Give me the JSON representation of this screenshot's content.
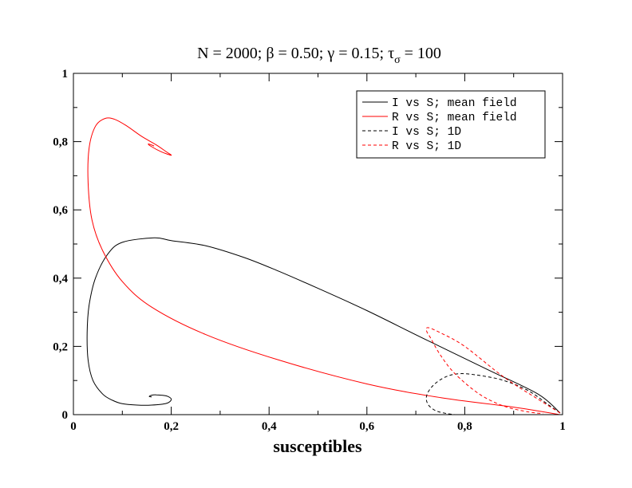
{
  "chart_data": {
    "type": "line",
    "title": {
      "prefix": "N = 2000;  ",
      "beta_symbol": "β",
      "beta_value": " = 0.50; ",
      "gamma_symbol": "γ",
      "gamma_value": " = 0.15; ",
      "tau_symbol": "τ",
      "tau_subscript": "σ",
      "tau_value": " = 100"
    },
    "xlabel": "susceptibles",
    "ylabel": "",
    "xlim": [
      0,
      1
    ],
    "ylim": [
      0,
      1
    ],
    "x_ticks": [
      0,
      0.2,
      0.4,
      0.6,
      0.8,
      1
    ],
    "x_tick_labels": [
      "0",
      "0,2",
      "0,4",
      "0,6",
      "0,8",
      "1"
    ],
    "y_ticks": [
      0,
      0.2,
      0.4,
      0.6,
      0.8,
      1
    ],
    "y_tick_labels": [
      "0",
      "0,2",
      "0,4",
      "0,6",
      "0,8",
      "1"
    ],
    "grid": false,
    "legend_position": "top-right",
    "series": [
      {
        "name": "I vs S; mean field",
        "color": "#000000",
        "dash": "solid",
        "x": [
          0.995,
          0.95,
          0.85,
          0.72,
          0.6,
          0.5,
          0.42,
          0.35,
          0.27,
          0.2,
          0.165,
          0.1,
          0.07,
          0.045,
          0.032,
          0.028,
          0.03,
          0.04,
          0.06,
          0.08,
          0.1,
          0.13,
          0.16,
          0.19,
          0.2,
          0.19,
          0.17,
          0.16,
          0.155,
          0.16
        ],
        "y": [
          0.005,
          0.06,
          0.13,
          0.22,
          0.305,
          0.37,
          0.42,
          0.46,
          0.495,
          0.51,
          0.518,
          0.505,
          0.47,
          0.4,
          0.32,
          0.24,
          0.16,
          0.1,
          0.06,
          0.042,
          0.032,
          0.028,
          0.028,
          0.033,
          0.045,
          0.055,
          0.058,
          0.057,
          0.053,
          0.052
        ]
      },
      {
        "name": "R vs S; mean field",
        "color": "#ff0000",
        "dash": "solid",
        "x": [
          0.995,
          0.9,
          0.75,
          0.6,
          0.42,
          0.27,
          0.16,
          0.1,
          0.06,
          0.038,
          0.03,
          0.032,
          0.045,
          0.065,
          0.085,
          0.11,
          0.14,
          0.17,
          0.19,
          0.2,
          0.18,
          0.16,
          0.153,
          0.16,
          0.165
        ],
        "y": [
          0.0,
          0.022,
          0.05,
          0.09,
          0.16,
          0.235,
          0.315,
          0.39,
          0.48,
          0.57,
          0.68,
          0.78,
          0.845,
          0.868,
          0.865,
          0.845,
          0.815,
          0.79,
          0.77,
          0.76,
          0.77,
          0.785,
          0.793,
          0.79,
          0.787
        ]
      },
      {
        "name": "I vs S; 1D",
        "color": "#000000",
        "dash": "dashed",
        "x": [
          0.995,
          0.97,
          0.93,
          0.88,
          0.83,
          0.79,
          0.76,
          0.735,
          0.722,
          0.725,
          0.74,
          0.76,
          0.78
        ],
        "y": [
          0.005,
          0.03,
          0.07,
          0.1,
          0.115,
          0.12,
          0.11,
          0.085,
          0.055,
          0.03,
          0.012,
          0.004,
          0.0
        ]
      },
      {
        "name": "R vs S; 1D",
        "color": "#ff0000",
        "dash": "dashed",
        "x": [
          0.995,
          0.95,
          0.88,
          0.8,
          0.75,
          0.725,
          0.722,
          0.73,
          0.75,
          0.78,
          0.83,
          0.88,
          0.93,
          0.96
        ],
        "y": [
          0.005,
          0.045,
          0.11,
          0.2,
          0.24,
          0.255,
          0.245,
          0.225,
          0.175,
          0.12,
          0.06,
          0.025,
          0.008,
          0.003
        ]
      }
    ]
  }
}
